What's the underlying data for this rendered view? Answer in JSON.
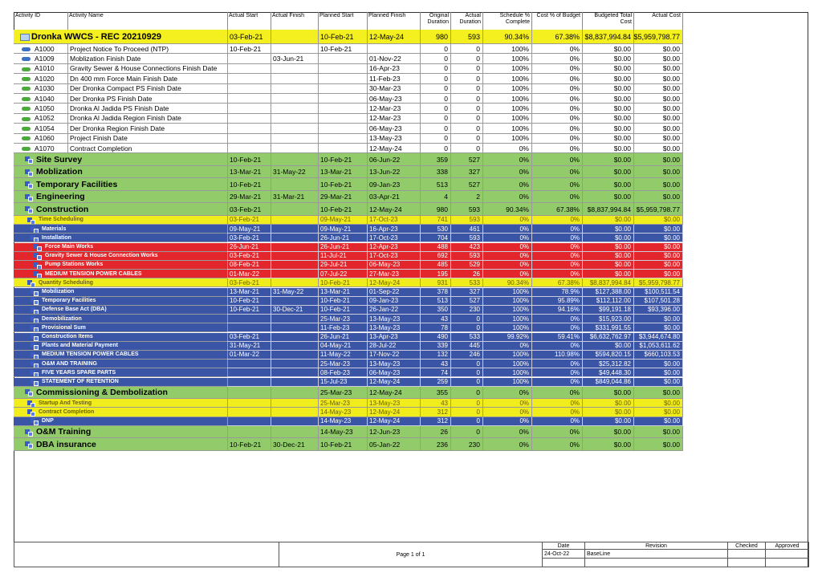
{
  "header": [
    "Activity ID",
    "Activity Name",
    "Actual Start",
    "Actual Finish",
    "Planned Start",
    "Planned Finish",
    "Original Duration",
    "Actual Duration",
    "Schedule % Complete",
    "Cost % of Budget",
    "Budgeted Total Cost",
    "Actual Cost"
  ],
  "row_colors": {
    "project": "#f4ef1e",
    "activity": "#ffffff",
    "wbs1": "#92cc6a",
    "wbs2": "#f1ec1c",
    "wbs3": "#3a55a6",
    "wbs4": "#e3262b"
  },
  "text_colors": {
    "project": "#000000",
    "activity": "#000000",
    "wbs1": "#000000",
    "wbs2": "#6b6200",
    "wbs3": "#ffffff",
    "wbs4": "#ffffff"
  },
  "rows": [
    {
      "kind": "project",
      "name": "Dronka WWCS - REC 20210929",
      "cells": [
        "03-Feb-21",
        null,
        "10-Feb-21",
        "12-May-24",
        980,
        593,
        "90.34%",
        "67.38%",
        "$8,837,994.84",
        "$5,959,798.77"
      ]
    },
    {
      "kind": "activity",
      "id": "A1000",
      "icon_color": "#3a6fc4",
      "name": "Project Notice To Proceed (NTP)",
      "cells": [
        "10-Feb-21",
        null,
        "10-Feb-21",
        null,
        0,
        0,
        "100%",
        "0%",
        "$0.00",
        "$0.00"
      ]
    },
    {
      "kind": "activity",
      "id": "A1009",
      "icon_color": "#3a6fc4",
      "name": "Moblization Finish Date",
      "cells": [
        null,
        "03-Jun-21",
        null,
        "01-Nov-22",
        0,
        0,
        "100%",
        "0%",
        "$0.00",
        "$0.00"
      ]
    },
    {
      "kind": "activity",
      "id": "A1010",
      "icon_color": "#4caa3c",
      "name": "Gravity Sewer & House Connections Finish Date",
      "cells": [
        null,
        null,
        null,
        "16-Apr-23",
        0,
        0,
        "100%",
        "0%",
        "$0.00",
        "$0.00"
      ]
    },
    {
      "kind": "activity",
      "id": "A1020",
      "icon_color": "#4caa3c",
      "name": "Dn 400 mm Force Main Finish Date",
      "cells": [
        null,
        null,
        null,
        "11-Feb-23",
        0,
        0,
        "100%",
        "0%",
        "$0.00",
        "$0.00"
      ]
    },
    {
      "kind": "activity",
      "id": "A1030",
      "icon_color": "#4caa3c",
      "name": "Der Dronka Compact PS Finish Date",
      "cells": [
        null,
        null,
        null,
        "30-Mar-23",
        0,
        0,
        "100%",
        "0%",
        "$0.00",
        "$0.00"
      ]
    },
    {
      "kind": "activity",
      "id": "A1040",
      "icon_color": "#4caa3c",
      "name": "Der Dronka PS Finish Date",
      "cells": [
        null,
        null,
        null,
        "06-May-23",
        0,
        0,
        "100%",
        "0%",
        "$0.00",
        "$0.00"
      ]
    },
    {
      "kind": "activity",
      "id": "A1050",
      "icon_color": "#4caa3c",
      "name": "Dronka Al Jadida PS Finish Date",
      "cells": [
        null,
        null,
        null,
        "12-Mar-23",
        0,
        0,
        "100%",
        "0%",
        "$0.00",
        "$0.00"
      ]
    },
    {
      "kind": "activity",
      "id": "A1052",
      "icon_color": "#4caa3c",
      "name": "Dronka Al Jadida Region Finish Date",
      "cells": [
        null,
        null,
        null,
        "12-Mar-23",
        0,
        0,
        "100%",
        "0%",
        "$0.00",
        "$0.00"
      ]
    },
    {
      "kind": "activity",
      "id": "A1054",
      "icon_color": "#4caa3c",
      "name": "Der Dronka Region Finish Date",
      "cells": [
        null,
        null,
        null,
        "06-May-23",
        0,
        0,
        "100%",
        "0%",
        "$0.00",
        "$0.00"
      ]
    },
    {
      "kind": "activity",
      "id": "A1060",
      "icon_color": "#4caa3c",
      "name": "Project Finish Date",
      "cells": [
        null,
        null,
        null,
        "13-May-23",
        0,
        0,
        "100%",
        "0%",
        "$0.00",
        "$0.00"
      ]
    },
    {
      "kind": "activity",
      "id": "A1070",
      "icon_color": "#4caa3c",
      "name": "Contract Completion",
      "cells": [
        null,
        null,
        null,
        "12-May-24",
        0,
        0,
        "0%",
        "0%",
        "$0.00",
        "$0.00"
      ]
    },
    {
      "kind": "wbs1",
      "name": "Site Survey",
      "cells": [
        "10-Feb-21",
        null,
        "10-Feb-21",
        "06-Jun-22",
        359,
        527,
        "0%",
        "0%",
        "$0.00",
        "$0.00"
      ]
    },
    {
      "kind": "wbs1",
      "name": "Moblization",
      "cells": [
        "13-Mar-21",
        "31-May-22",
        "13-Mar-21",
        "13-Jun-22",
        338,
        327,
        "0%",
        "0%",
        "$0.00",
        "$0.00"
      ]
    },
    {
      "kind": "wbs1",
      "name": "Temporary Facilities",
      "cells": [
        "10-Feb-21",
        null,
        "10-Feb-21",
        "09-Jan-23",
        513,
        527,
        "0%",
        "0%",
        "$0.00",
        "$0.00"
      ]
    },
    {
      "kind": "wbs1",
      "name": "Engineering",
      "cells": [
        "29-Mar-21",
        "31-Mar-21",
        "29-Mar-21",
        "03-Apr-21",
        4,
        2,
        "0%",
        "0%",
        "$0.00",
        "$0.00"
      ]
    },
    {
      "kind": "wbs1",
      "name": "Construction",
      "cells": [
        "03-Feb-21",
        null,
        "10-Feb-21",
        "12-May-24",
        980,
        593,
        "90.34%",
        "67.38%",
        "$8,837,994.84",
        "$5,959,798.77"
      ]
    },
    {
      "kind": "wbs2",
      "name": "Time Scheduling",
      "cells": [
        "03-Feb-21",
        null,
        "09-May-21",
        "17-Oct-23",
        741,
        593,
        "0%",
        "0%",
        "$0.00",
        "$0.00"
      ]
    },
    {
      "kind": "wbs3",
      "name": "Materials",
      "cells": [
        "09-May-21",
        null,
        "09-May-21",
        "16-Apr-23",
        530,
        461,
        "0%",
        "0%",
        "$0.00",
        "$0.00"
      ]
    },
    {
      "kind": "wbs3",
      "name": "Installation",
      "cells": [
        "03-Feb-21",
        null,
        "26-Jun-21",
        "17-Oct-23",
        704,
        593,
        "0%",
        "0%",
        "$0.00",
        "$0.00"
      ]
    },
    {
      "kind": "wbs4",
      "name": "Force Main Works",
      "cells": [
        "26-Jun-21",
        null,
        "26-Jun-21",
        "12-Apr-23",
        488,
        423,
        "0%",
        "0%",
        "$0.00",
        "$0.00"
      ]
    },
    {
      "kind": "wbs4",
      "name": "Gravity Sewer & House Connection Works",
      "cells": [
        "03-Feb-21",
        null,
        "11-Jul-21",
        "17-Oct-23",
        692,
        593,
        "0%",
        "0%",
        "$0.00",
        "$0.00"
      ]
    },
    {
      "kind": "wbs4",
      "name": "Pump Stations Works",
      "cells": [
        "08-Feb-21",
        null,
        "29-Jul-21",
        "06-May-23",
        485,
        529,
        "0%",
        "0%",
        "$0.00",
        "$0.00"
      ]
    },
    {
      "kind": "wbs4",
      "name": "MEDIUM TENSION POWER CABLES",
      "cells": [
        "01-Mar-22",
        null,
        "07-Jul-22",
        "27-Mar-23",
        195,
        26,
        "0%",
        "0%",
        "$0.00",
        "$0.00"
      ]
    },
    {
      "kind": "wbs2",
      "name": "Quantity Scheduling",
      "cells": [
        "03-Feb-21",
        null,
        "10-Feb-21",
        "12-May-24",
        931,
        533,
        "90.34%",
        "67.38%",
        "$8,837,994.84",
        "$5,959,798.77"
      ]
    },
    {
      "kind": "wbs3",
      "name": "Mobilization",
      "cells": [
        "13-Mar-21",
        "31-May-22",
        "13-Mar-21",
        "01-Sep-22",
        378,
        327,
        "100%",
        "78.9%",
        "$127,388.00",
        "$100,511.54"
      ]
    },
    {
      "kind": "wbs3",
      "name": "Temporary Facilities",
      "cells": [
        "10-Feb-21",
        null,
        "10-Feb-21",
        "09-Jan-23",
        513,
        527,
        "100%",
        "95.89%",
        "$112,112.00",
        "$107,501.28"
      ]
    },
    {
      "kind": "wbs3",
      "name": "Defense Base Act (DBA)",
      "cells": [
        "10-Feb-21",
        "30-Dec-21",
        "10-Feb-21",
        "26-Jan-22",
        350,
        230,
        "100%",
        "94.16%",
        "$99,191.18",
        "$93,396.00"
      ]
    },
    {
      "kind": "wbs3",
      "name": "Demobilization",
      "cells": [
        null,
        null,
        "25-Mar-23",
        "13-May-23",
        43,
        0,
        "100%",
        "0%",
        "$15,923.00",
        "$0.00"
      ]
    },
    {
      "kind": "wbs3",
      "name": "Provisional Sum",
      "cells": [
        null,
        null,
        "11-Feb-23",
        "13-May-23",
        78,
        0,
        "100%",
        "0%",
        "$331,991.55",
        "$0.00"
      ]
    },
    {
      "kind": "wbs3",
      "name": "Construction Items",
      "cells": [
        "03-Feb-21",
        null,
        "26-Jun-21",
        "13-Apr-23",
        490,
        533,
        "99.92%",
        "59.41%",
        "$6,632,762.97",
        "$3,944,674.80"
      ]
    },
    {
      "kind": "wbs3",
      "name": "Plants and  Material Payment",
      "cells": [
        "31-May-21",
        null,
        "04-May-21",
        "28-Jul-22",
        339,
        445,
        "0%",
        "0%",
        "$0.00",
        "$1,053,611.62"
      ]
    },
    {
      "kind": "wbs3",
      "name": "MEDIUM TENSION POWER CABLES",
      "cells": [
        "01-Mar-22",
        null,
        "11-May-22",
        "17-Nov-22",
        132,
        246,
        "100%",
        "110.98%",
        "$594,820.15",
        "$660,103.53"
      ]
    },
    {
      "kind": "wbs3",
      "name": "O&M AND TRAINING",
      "cells": [
        null,
        null,
        "25-Mar-23",
        "13-May-23",
        43,
        0,
        "100%",
        "0%",
        "$25,312.82",
        "$0.00"
      ]
    },
    {
      "kind": "wbs3",
      "name": "FIVE YEARS SPARE PARTS",
      "cells": [
        null,
        null,
        "08-Feb-23",
        "06-May-23",
        74,
        0,
        "100%",
        "0%",
        "$49,448.30",
        "$0.00"
      ]
    },
    {
      "kind": "wbs3",
      "name": "STATEMENT OF RETENTION",
      "cells": [
        null,
        null,
        "15-Jul-23",
        "12-May-24",
        259,
        0,
        "100%",
        "0%",
        "$849,044.86",
        "$0.00"
      ]
    },
    {
      "kind": "wbs1",
      "name": "Commissioning & Dembolization",
      "cells": [
        null,
        null,
        "25-Mar-23",
        "12-May-24",
        355,
        0,
        "0%",
        "0%",
        "$0.00",
        "$0.00"
      ]
    },
    {
      "kind": "wbs2",
      "name": "Startup  And  Testing",
      "cells": [
        null,
        null,
        "25-Mar-23",
        "13-May-23",
        43,
        0,
        "0%",
        "0%",
        "$0.00",
        "$0.00"
      ]
    },
    {
      "kind": "wbs2",
      "name": "Contract Completion",
      "cells": [
        null,
        null,
        "14-May-23",
        "12-May-24",
        312,
        0,
        "0%",
        "0%",
        "$0.00",
        "$0.00"
      ]
    },
    {
      "kind": "wbs3",
      "name": "DNP",
      "cells": [
        null,
        null,
        "14-May-23",
        "12-May-24",
        312,
        0,
        "0%",
        "0%",
        "$0.00",
        "$0.00"
      ]
    },
    {
      "kind": "wbs1",
      "name": "O&M Training",
      "cells": [
        null,
        null,
        "14-May-23",
        "12-Jun-23",
        26,
        0,
        "0%",
        "0%",
        "$0.00",
        "$0.00"
      ]
    },
    {
      "kind": "wbs1",
      "name": "DBA insurance",
      "cells": [
        "10-Feb-21",
        "30-Dec-21",
        "10-Feb-21",
        "05-Jan-22",
        236,
        230,
        "0%",
        "0%",
        "$0.00",
        "$0.00"
      ]
    }
  ],
  "footer": {
    "page": "Page 1 of 1",
    "columns": [
      "Date",
      "Revision",
      "Checked",
      "Approved"
    ],
    "date": "24-Oct-22",
    "revision": "BaseLine"
  }
}
